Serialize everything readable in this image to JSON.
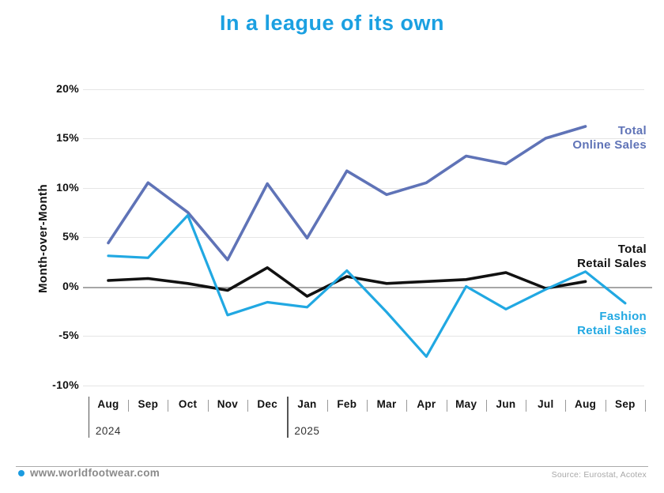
{
  "title": "In a league of its own",
  "title_color": "#1ba0e1",
  "chart_data": {
    "type": "line",
    "title": "In a league of its own",
    "ylabel": "Month-over-Month",
    "ylim": [
      -10,
      20
    ],
    "grid": "horizontal",
    "x_months": [
      "Aug",
      "Sep",
      "Oct",
      "Nov",
      "Dec",
      "Jan",
      "Feb",
      "Mar",
      "Apr",
      "May",
      "Jun",
      "Jul",
      "Aug",
      "Sep"
    ],
    "x_years": [
      {
        "label": "2024",
        "start_index": 0
      },
      {
        "label": "2025",
        "start_index": 5
      }
    ],
    "y_ticks": [
      {
        "label": "20%",
        "value": 20
      },
      {
        "label": "15%",
        "value": 15
      },
      {
        "label": "10%",
        "value": 10
      },
      {
        "label": "5%",
        "value": 5
      },
      {
        "label": "0%",
        "value": 0
      },
      {
        "label": "-5%",
        "value": -5
      },
      {
        "label": "-10%",
        "value": -10
      }
    ],
    "series": [
      {
        "name": "Total Online Sales",
        "label_lines": [
          "Total",
          "Online Sales"
        ],
        "color": "#5f73b7",
        "stroke_width": 3.6,
        "values": [
          4.4,
          10.5,
          7.5,
          2.7,
          10.4,
          4.9,
          11.7,
          9.3,
          10.5,
          13.2,
          12.4,
          15.0,
          16.2
        ]
      },
      {
        "name": "Total Retail Sales",
        "label_lines": [
          "Total",
          "Retail Sales"
        ],
        "color": "#111111",
        "stroke_width": 3.6,
        "values": [
          0.6,
          0.8,
          0.3,
          -0.4,
          1.9,
          -1.0,
          1.0,
          0.3,
          0.5,
          0.7,
          1.4,
          -0.2,
          0.5
        ]
      },
      {
        "name": "Fashion Retail Sales",
        "label_lines": [
          "Fashion",
          "Retail Sales"
        ],
        "color": "#21a8e2",
        "stroke_width": 3.2,
        "values": [
          3.1,
          2.9,
          7.2,
          -2.9,
          -1.6,
          -2.1,
          1.6,
          -2.6,
          -7.1,
          0.0,
          -2.3,
          -0.3,
          1.5,
          -1.7
        ]
      }
    ]
  },
  "footer": {
    "site": "www.worldfootwear.com",
    "source": "Source: Eurostat, Acotex",
    "dot_color": "#1b9be0"
  }
}
